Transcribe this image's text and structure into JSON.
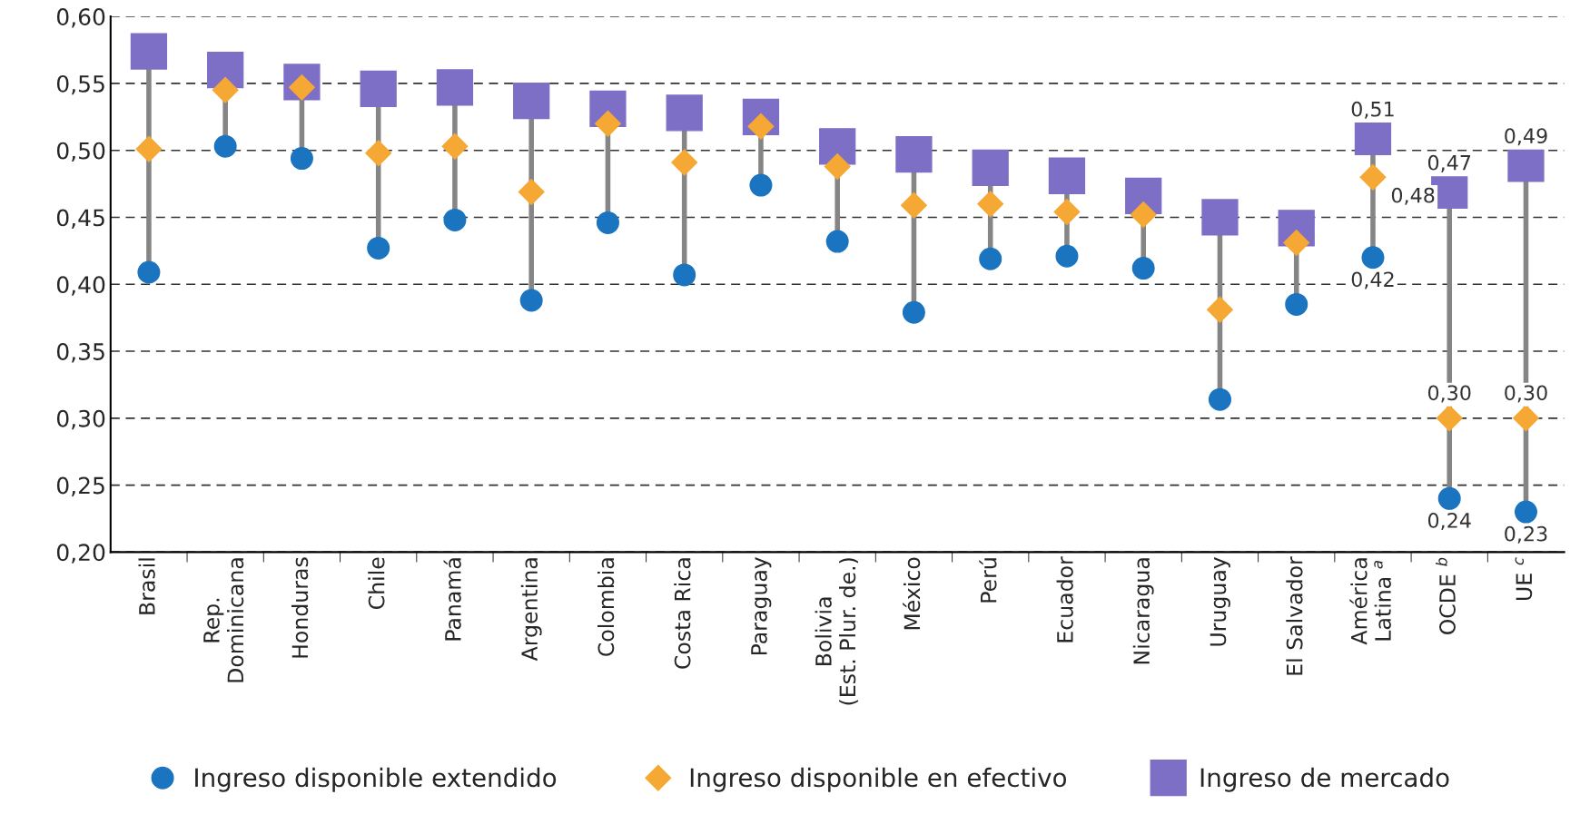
{
  "chart_data": {
    "type": "scatter",
    "categories": [
      "Brasil",
      "Rep.\nDominicana",
      "Honduras",
      "Chile",
      "Panamá",
      "Argentina",
      "Colombia",
      "Costa Rica",
      "Paraguay",
      "Bolivia\n(Est. Plur. de.)",
      "México",
      "Perú",
      "Ecuador",
      "Nicaragua",
      "Uruguay",
      "El Salvador",
      "América\nLatina $^{a}$",
      "OCDE $^{b}$",
      "UE $^{c}$"
    ],
    "series": [
      {
        "name": "Ingreso disponible extendido",
        "color": "#1b74bf",
        "marker": "circle",
        "values": [
          0.409,
          0.503,
          0.494,
          0.427,
          0.448,
          0.388,
          0.446,
          0.407,
          0.474,
          0.432,
          0.379,
          0.419,
          0.421,
          0.412,
          0.314,
          0.385,
          0.42,
          0.24,
          0.23
        ],
        "value_labels": [
          null,
          null,
          null,
          null,
          null,
          null,
          null,
          null,
          null,
          null,
          null,
          null,
          null,
          null,
          null,
          null,
          "0,42",
          "0,24",
          "0,23"
        ]
      },
      {
        "name": "Ingreso disponible en efectivo",
        "color": "#f5a833",
        "marker": "diamond",
        "values": [
          0.501,
          0.545,
          0.547,
          0.498,
          0.503,
          0.469,
          0.52,
          0.491,
          0.518,
          0.488,
          0.459,
          0.46,
          0.454,
          0.452,
          0.381,
          0.431,
          0.48,
          0.3,
          0.3
        ],
        "value_labels": [
          null,
          null,
          null,
          null,
          null,
          null,
          null,
          null,
          null,
          null,
          null,
          null,
          null,
          null,
          null,
          null,
          "0,48",
          "0,30",
          "0,30"
        ]
      },
      {
        "name": "Ingreso de mercado",
        "color": "#7e6fc6",
        "marker": "square",
        "values": [
          0.574,
          0.56,
          0.551,
          0.546,
          0.547,
          0.537,
          0.531,
          0.528,
          0.525,
          0.503,
          0.497,
          0.487,
          0.481,
          0.466,
          0.45,
          0.442,
          0.51,
          0.47,
          0.49
        ],
        "value_labels": [
          null,
          null,
          null,
          null,
          null,
          null,
          null,
          null,
          null,
          null,
          null,
          null,
          null,
          null,
          null,
          null,
          "0,51",
          "0,47",
          "0,49"
        ]
      }
    ],
    "ylim": [
      0.2,
      0.6
    ],
    "yticks": [
      {
        "value": 0.2,
        "label": "0,20"
      },
      {
        "value": 0.25,
        "label": "0,25"
      },
      {
        "value": 0.3,
        "label": "0,30"
      },
      {
        "value": 0.35,
        "label": "0,35"
      },
      {
        "value": 0.4,
        "label": "0,40"
      },
      {
        "value": 0.45,
        "label": "0,45"
      },
      {
        "value": 0.5,
        "label": "0,50"
      },
      {
        "value": 0.55,
        "label": "0,55"
      },
      {
        "value": 0.6,
        "label": "0,60"
      }
    ],
    "grid": "y",
    "legend": "bottom"
  }
}
